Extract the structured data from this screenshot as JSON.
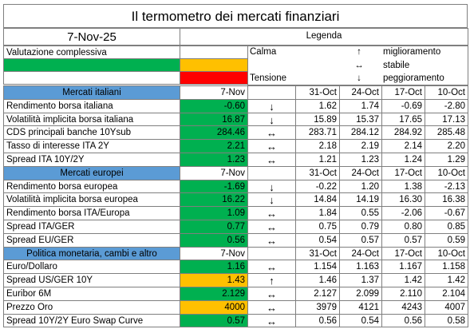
{
  "title": "Il termometro dei mercati finanziari",
  "date": "7-Nov-25",
  "legend": {
    "title": "Legenda",
    "label": "Valutazione complessiva",
    "calm": "Calma",
    "tension": "Tensione",
    "colors": [
      "#00b050",
      "#ffc000",
      "#ff0000"
    ],
    "items": [
      {
        "symbol": "↑",
        "text": "miglioramento"
      },
      {
        "symbol": "↔",
        "text": "stabile"
      },
      {
        "symbol": "↓",
        "text": "peggioramento"
      }
    ]
  },
  "sections": [
    {
      "title": "Mercati italiani",
      "current": "7-Nov",
      "dates": [
        "31-Oct",
        "24-Oct",
        "17-Oct",
        "10-Oct"
      ],
      "rows": [
        {
          "label": "Rendimento borsa italiana",
          "value": "-0.60",
          "color": "#00b050",
          "trend": "↓",
          "history": [
            "1.62",
            "1.74",
            "-0.69",
            "-2.80"
          ]
        },
        {
          "label": "Volatilità implicita borsa italiana",
          "value": "16.87",
          "color": "#00b050",
          "trend": "↓",
          "history": [
            "15.89",
            "15.37",
            "17.65",
            "17.13"
          ]
        },
        {
          "label": "CDS principali banche 10Ysub",
          "value": "284.46",
          "color": "#00b050",
          "trend": "↔",
          "history": [
            "283.71",
            "284.12",
            "284.92",
            "285.48"
          ]
        },
        {
          "label": "Tasso di interesse ITA 2Y",
          "value": "2.21",
          "color": "#00b050",
          "trend": "↔",
          "history": [
            "2.18",
            "2.19",
            "2.14",
            "2.20"
          ]
        },
        {
          "label": "Spread ITA 10Y/2Y",
          "value": "1.23",
          "color": "#00b050",
          "trend": "↔",
          "history": [
            "1.21",
            "1.23",
            "1.24",
            "1.29"
          ]
        }
      ]
    },
    {
      "title": "Mercati europei",
      "current": "7-Nov",
      "dates": [
        "31-Oct",
        "24-Oct",
        "17-Oct",
        "10-Oct"
      ],
      "rows": [
        {
          "label": "Rendimento borsa europea",
          "value": "-1.69",
          "color": "#00b050",
          "trend": "↓",
          "history": [
            "-0.22",
            "1.20",
            "1.38",
            "-2.13"
          ]
        },
        {
          "label": "Volatilità implicita borsa europea",
          "value": "16.22",
          "color": "#00b050",
          "trend": "↓",
          "history": [
            "14.84",
            "14.19",
            "16.30",
            "16.38"
          ]
        },
        {
          "label": "Rendimento borsa ITA/Europa",
          "value": "1.09",
          "color": "#00b050",
          "trend": "↔",
          "history": [
            "1.84",
            "0.55",
            "-2.06",
            "-0.67"
          ]
        },
        {
          "label": "Spread ITA/GER",
          "value": "0.77",
          "color": "#00b050",
          "trend": "↔",
          "history": [
            "0.75",
            "0.79",
            "0.80",
            "0.85"
          ]
        },
        {
          "label": "Spread EU/GER",
          "value": "0.56",
          "color": "#00b050",
          "trend": "↔",
          "history": [
            "0.54",
            "0.57",
            "0.57",
            "0.59"
          ]
        }
      ]
    },
    {
      "title": "Politica monetaria, cambi e altro",
      "current": "7-Nov",
      "dates": [
        "31-Oct",
        "24-Oct",
        "17-Oct",
        "10-Oct"
      ],
      "rows": [
        {
          "label": "Euro/Dollaro",
          "value": "1.16",
          "color": "#00b050",
          "trend": "↔",
          "history": [
            "1.154",
            "1.163",
            "1.167",
            "1.158"
          ]
        },
        {
          "label": "Spread US/GER 10Y",
          "value": "1.43",
          "color": "#ffc000",
          "trend": "↑",
          "history": [
            "1.46",
            "1.37",
            "1.42",
            "1.42"
          ]
        },
        {
          "label": "Euribor 6M",
          "value": "2.129",
          "color": "#00b050",
          "trend": "↔",
          "history": [
            "2.127",
            "2.099",
            "2.110",
            "2.104"
          ]
        },
        {
          "label": "Prezzo Oro",
          "value": "4000",
          "color": "#ffc000",
          "trend": "↔",
          "history": [
            "3979",
            "4121",
            "4243",
            "4007"
          ]
        },
        {
          "label": "Spread 10Y/2Y Euro Swap Curve",
          "value": "0.57",
          "color": "#00b050",
          "trend": "↔",
          "history": [
            "0.56",
            "0.54",
            "0.56",
            "0.58"
          ]
        }
      ]
    }
  ]
}
